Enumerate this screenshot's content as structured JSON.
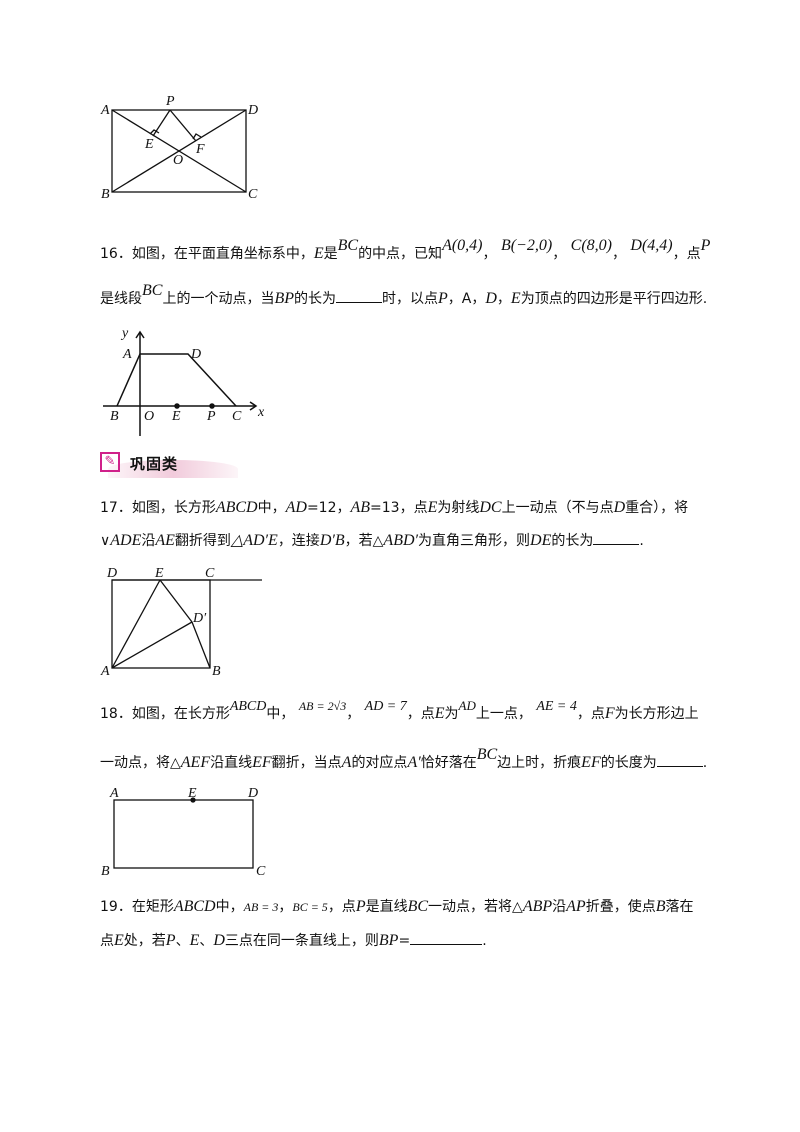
{
  "fig15": {
    "labels": {
      "A": "A",
      "D": "D",
      "P": "P",
      "E": "E",
      "F": "F",
      "O": "O",
      "B": "B",
      "C": "C"
    }
  },
  "q16": {
    "line1": [
      "16．如图，在平面直角坐标系中，",
      "E",
      "是",
      "BC",
      "的中点，已知",
      "A(0,4)",
      "，",
      "B(−2,0)",
      "，",
      "C(8,0)",
      "，",
      "D(4,4)",
      "，点",
      "P"
    ],
    "line2": [
      "是线段",
      "BC",
      "上的一个动点，当",
      "BP",
      "的长为",
      "时，以点",
      "P",
      "，A，",
      "D",
      "，",
      "E",
      "为顶点的四边形是平行四边形."
    ],
    "fig": {
      "y": "y",
      "x": "x",
      "A": "A",
      "D": "D",
      "B": "B",
      "O": "O",
      "E": "E",
      "P": "P",
      "C": "C"
    }
  },
  "section": {
    "title": "巩固类",
    "icon": "quill-icon"
  },
  "q17": {
    "line1": [
      "17．如图，长方形",
      "ABCD",
      "中，",
      "AD",
      "=12，",
      "AB",
      "=13，点",
      "E",
      "为射线",
      "DC",
      "上一动点（不与点",
      "D",
      "重合），将"
    ],
    "line2": [
      "∨",
      "ADE",
      "沿",
      "AE",
      "翻折得到",
      "△AD′E",
      "，连接",
      "D′B",
      "，若△",
      "ABD′",
      "为直角三角形，则",
      "DE",
      "的长为",
      "."
    ],
    "fig": {
      "D": "D",
      "E": "E",
      "C": "C",
      "D2": "D′",
      "A": "A",
      "B": "B"
    }
  },
  "q18": {
    "line1": [
      "18．如图，在长方形",
      "ABCD",
      "中，",
      "AB = 2√3",
      "，",
      "AD = 7",
      "，点",
      "E",
      "为",
      "AD",
      "上一点，",
      "AE = 4",
      "，点",
      "F",
      "为长方形边上"
    ],
    "line2": [
      "一动点，将△",
      "AEF",
      "沿直线",
      "EF",
      "翻折，当点",
      "A",
      "的对应点",
      "A′",
      "恰好落在",
      "BC",
      "边上时，折痕",
      "EF",
      "的长度为",
      "."
    ],
    "fig": {
      "A": "A",
      "E": "E",
      "D": "D",
      "B": "B",
      "C": "C"
    }
  },
  "q19": {
    "line1": [
      "19．在矩形",
      "ABCD",
      "中，",
      "AB = 3",
      "，",
      "BC = 5",
      "，点",
      "P",
      "是直线",
      "BC",
      "一动点，若将△",
      "ABP",
      "沿",
      "AP",
      "折叠，使点",
      "B",
      "落在"
    ],
    "line2": [
      "点",
      "E",
      "处，若",
      "P",
      "、",
      "E",
      "、",
      "D",
      "三点在同一条直线上，则",
      "BP",
      "=",
      "."
    ]
  }
}
